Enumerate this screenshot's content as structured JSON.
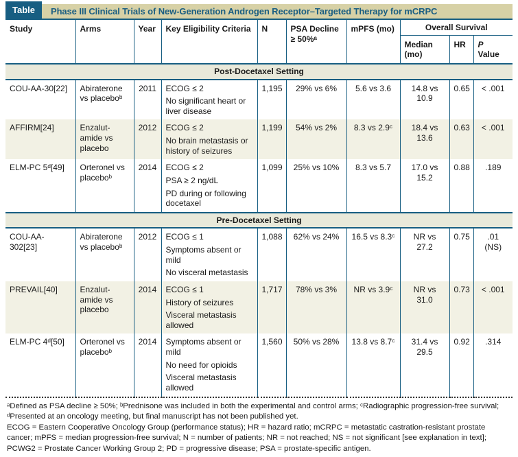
{
  "colors": {
    "teal": "#175E82",
    "title_text": "#1A5E82",
    "tan": "#D7D1A6",
    "band": "#E9E9DA",
    "stripe": "#F2F1E4"
  },
  "title_bar": {
    "tag": "Table",
    "title": "Phase III Clinical Trials of New-Generation Androgen Receptor–Targeted Therapy for mCRPC"
  },
  "table": {
    "header": {
      "study": "Study",
      "arms": "Arms",
      "year": "Year",
      "criteria": "Key Eligibility Criteria",
      "n": "N",
      "psa": "PSA Decline ≥ 50%ᵃ",
      "mpfs": "mPFS (mo)",
      "overall_survival": "Overall Survival",
      "median": "Median (mo)",
      "hr": "HR",
      "p_symbol": "P",
      "p_value_label": "Value"
    },
    "sections": [
      {
        "label": "Post-Docetaxel Setting",
        "rows": [
          {
            "study": "COU-AA-30[22]",
            "arms": "Abiraterone vs placeboᵇ",
            "year": "2011",
            "criteria": [
              "ECOG ≤  2",
              "No significant heart or liver disease"
            ],
            "n": "1,195",
            "psa": "29% vs 6%",
            "mpfs": "5.6 vs 3.6",
            "os_median": "14.8 vs 10.9",
            "hr": "0.65",
            "p": "< .001"
          },
          {
            "study": "AFFIRM[24]",
            "arms": "Enzalut­amide vs placebo",
            "year": "2012",
            "criteria": [
              "ECOG ≤  2",
              "No brain metastasis or history of seizures"
            ],
            "n": "1,199",
            "psa": "54% vs 2%",
            "mpfs": "8.3 vs 2.9ᶜ",
            "os_median": "18.4 vs 13.6",
            "hr": "0.63",
            "p": "< .001"
          },
          {
            "study": "ELM-PC 5ᵈ[49]",
            "arms": "Orteronel vs placeboᵇ",
            "year": "2014",
            "criteria": [
              "ECOG ≤  2",
              "PSA ≥ 2 ng/dL",
              "PD during or following docetaxel"
            ],
            "n": "1,099",
            "psa": "25% vs 10%",
            "mpfs": "8.3 vs 5.7",
            "os_median": "17.0 vs 15.2",
            "hr": "0.88",
            "p": ".189"
          }
        ]
      },
      {
        "label": "Pre-Docetaxel Setting",
        "rows": [
          {
            "study": "COU-AA-302[23]",
            "arms": "Abiraterone vs placeboᵇ",
            "year": "2012",
            "criteria": [
              "ECOG ≤ 1",
              "Symptoms absent or mild",
              "No visceral metastasis"
            ],
            "n": "1,088",
            "psa": "62% vs 24%",
            "mpfs": "16.5 vs 8.3ᶜ",
            "os_median": "NR vs 27.2",
            "hr": "0.75",
            "p": ".01\n(NS)"
          },
          {
            "study": "PREVAIL[40]",
            "arms": "Enzalut­amide vs placebo",
            "year": "2014",
            "criteria": [
              "ECOG ≤ 1",
              "History of seizures",
              "Visceral metastasis allowed"
            ],
            "n": "1,717",
            "psa": "78% vs 3%",
            "mpfs": "NR vs 3.9ᶜ",
            "os_median": "NR vs 31.0",
            "hr": "0.73",
            "p": "< .001"
          },
          {
            "study": "ELM-PC 4ᵈ[50]",
            "arms": "Orteronel vs placeboᵇ",
            "year": "2014",
            "criteria": [
              "Symptoms absent or mild",
              "No need for opioids",
              "Visceral metastasis allowed"
            ],
            "n": "1,560",
            "psa": "50% vs 28%",
            "mpfs": "13.8 vs 8.7ᶜ",
            "os_median": "31.4 vs 29.5",
            "hr": "0.92",
            "p": ".314"
          }
        ]
      }
    ],
    "footnotes": {
      "notes": "ᵃDefined as PSA decline ≥ 50%; ᵇPrednisone was included in both the experimental and control arms; ᶜRadiographic progression-free survival; ᵈPresented at an oncology meeting, but final manuscript has not been published yet.",
      "abbreviations": "ECOG = Eastern Cooperative Oncology Group (performance status); HR = hazard ratio; mCRPC = metastatic castration-resistant prostate cancer; mPFS = median progression-free survival; N = number of patients; NR =  not reached; NS = not significant [see explanation in text]; PCWG2 = Prostate Cancer Working Group 2; PD = progressive disease; PSA = prostate-specific antigen."
    }
  }
}
